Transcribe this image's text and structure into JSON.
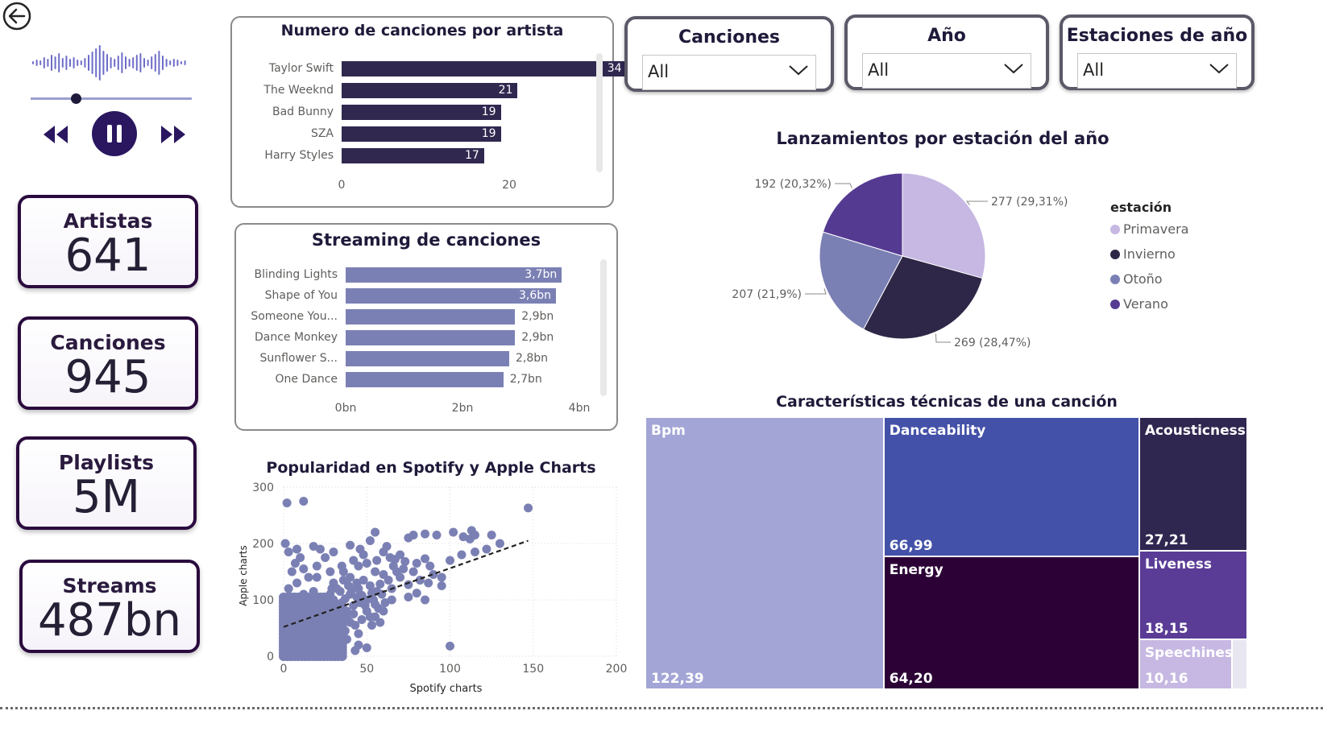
{
  "nav": {
    "back_icon": "back-arrow-icon"
  },
  "player": {
    "progress": 0.28,
    "colors": {
      "wave": "#6c6cc8",
      "button": "#2a1760"
    }
  },
  "kpis": [
    {
      "label": "Artistas",
      "value": "641"
    },
    {
      "label": "Canciones",
      "value": "945"
    },
    {
      "label": "Playlists",
      "value": "5M"
    },
    {
      "label": "Streams",
      "value": "487bn"
    }
  ],
  "slicers": [
    {
      "title": "Canciones",
      "value": "All"
    },
    {
      "title": "Año",
      "value": "All"
    },
    {
      "title": "Estaciones de año",
      "value": "All"
    }
  ],
  "chart_data": [
    {
      "id": "artists",
      "type": "bar",
      "title": "Numero de canciones por artista",
      "categories": [
        "Taylor Swift",
        "The Weeknd",
        "Bad Bunny",
        "SZA",
        "Harry Styles"
      ],
      "values": [
        34,
        21,
        19,
        19,
        17
      ],
      "labels": [
        "34",
        "21",
        "19",
        "19",
        "17"
      ],
      "xticks": [
        "0",
        "20"
      ],
      "xlim": [
        0,
        40
      ],
      "color": "#312850"
    },
    {
      "id": "streams",
      "type": "bar",
      "title": "Streaming de canciones",
      "categories": [
        "Blinding Lights",
        "Shape of You",
        "Someone You...",
        "Dance Monkey",
        "Sunflower S...",
        "One Dance"
      ],
      "values": [
        3.7,
        3.6,
        2.9,
        2.9,
        2.8,
        2.7
      ],
      "labels": [
        "3,7bn",
        "3,6bn",
        "2,9bn",
        "2,9bn",
        "2,8bn",
        "2,7bn"
      ],
      "xticks": [
        "0bn",
        "2bn",
        "4bn"
      ],
      "xlim": [
        0,
        4
      ],
      "color": "#7b80b4"
    },
    {
      "id": "scatter",
      "type": "scatter",
      "title": "Popularidad en Spotify y Apple Charts",
      "xlabel": "Spotify charts",
      "ylabel": "Apple charts",
      "xticks": [
        "0",
        "50",
        "100",
        "150",
        "200"
      ],
      "yticks": [
        "0",
        "100",
        "200",
        "300"
      ],
      "xlim": [
        0,
        200
      ],
      "ylim": [
        0,
        300
      ],
      "trend": [
        [
          0,
          52
        ],
        [
          147,
          205
        ]
      ],
      "color": "#7b80b4",
      "points": [
        [
          2,
          272
        ],
        [
          12,
          275
        ],
        [
          147,
          263
        ],
        [
          55,
          220
        ],
        [
          75,
          210
        ],
        [
          78,
          215
        ],
        [
          85,
          217
        ],
        [
          92,
          215
        ],
        [
          102,
          220
        ],
        [
          108,
          212
        ],
        [
          113,
          223
        ],
        [
          115,
          215
        ],
        [
          112,
          208
        ],
        [
          125,
          215
        ],
        [
          130,
          200
        ],
        [
          115,
          185
        ],
        [
          122,
          190
        ],
        [
          107,
          180
        ],
        [
          100,
          170
        ],
        [
          85,
          173
        ],
        [
          80,
          165
        ],
        [
          73,
          168
        ],
        [
          67,
          172
        ],
        [
          60,
          185
        ],
        [
          52,
          205
        ],
        [
          40,
          197
        ],
        [
          48,
          180
        ],
        [
          45,
          160
        ],
        [
          60,
          145
        ],
        [
          68,
          150
        ],
        [
          70,
          140
        ],
        [
          75,
          127
        ],
        [
          80,
          112
        ],
        [
          85,
          100
        ],
        [
          65,
          100
        ],
        [
          55,
          92
        ],
        [
          50,
          80
        ],
        [
          53,
          55
        ],
        [
          58,
          60
        ],
        [
          45,
          40
        ],
        [
          38,
          30
        ],
        [
          45,
          20
        ],
        [
          50,
          15
        ],
        [
          100,
          18
        ],
        [
          43,
          10
        ],
        [
          55,
          70
        ],
        [
          60,
          80
        ],
        [
          65,
          120
        ],
        [
          95,
          125
        ],
        [
          87,
          130
        ],
        [
          75,
          105
        ],
        [
          36,
          150
        ],
        [
          30,
          130
        ],
        [
          25,
          175
        ],
        [
          20,
          160
        ],
        [
          18,
          195
        ],
        [
          30,
          185
        ],
        [
          22,
          190
        ],
        [
          8,
          190
        ],
        [
          10,
          175
        ],
        [
          15,
          140
        ],
        [
          5,
          150
        ],
        [
          3,
          120
        ],
        [
          8,
          130
        ],
        [
          12,
          110
        ],
        [
          18,
          115
        ],
        [
          25,
          105
        ],
        [
          30,
          100
        ],
        [
          35,
          95
        ],
        [
          40,
          110
        ],
        [
          45,
          120
        ],
        [
          42,
          90
        ],
        [
          38,
          80
        ],
        [
          33,
          70
        ],
        [
          28,
          60
        ],
        [
          22,
          50
        ],
        [
          15,
          45
        ],
        [
          10,
          35
        ],
        [
          5,
          20
        ],
        [
          2,
          10
        ],
        [
          8,
          5
        ],
        [
          12,
          15
        ],
        [
          18,
          25
        ],
        [
          25,
          30
        ],
        [
          30,
          40
        ],
        [
          35,
          50
        ],
        [
          40,
          60
        ],
        [
          20,
          75
        ],
        [
          15,
          85
        ],
        [
          10,
          95
        ],
        [
          5,
          105
        ],
        [
          2,
          80
        ],
        [
          3,
          60
        ],
        [
          1,
          40
        ],
        [
          6,
          70
        ],
        [
          14,
          65
        ],
        [
          24,
          85
        ],
        [
          28,
          110
        ],
        [
          32,
          120
        ],
        [
          36,
          135
        ],
        [
          40,
          140
        ],
        [
          44,
          130
        ],
        [
          48,
          135
        ],
        [
          52,
          125
        ],
        [
          56,
          115
        ],
        [
          50,
          100
        ],
        [
          46,
          95
        ],
        [
          42,
          75
        ],
        [
          38,
          68
        ],
        [
          34,
          58
        ],
        [
          30,
          50
        ],
        [
          26,
          45
        ],
        [
          22,
          40
        ],
        [
          18,
          35
        ],
        [
          14,
          28
        ],
        [
          10,
          22
        ],
        [
          6,
          15
        ],
        [
          4,
          8
        ],
        [
          9,
          28
        ],
        [
          16,
          52
        ],
        [
          21,
          62
        ],
        [
          27,
          78
        ],
        [
          31,
          88
        ],
        [
          37,
          102
        ],
        [
          41,
          118
        ],
        [
          47,
          108
        ],
        [
          53,
          112
        ],
        [
          58,
          128
        ],
        [
          63,
          135
        ],
        [
          66,
          160
        ],
        [
          72,
          155
        ],
        [
          55,
          150
        ],
        [
          50,
          165
        ],
        [
          35,
          160
        ],
        [
          28,
          150
        ],
        [
          20,
          140
        ],
        [
          12,
          155
        ],
        [
          7,
          165
        ],
        [
          3,
          185
        ],
        [
          1,
          200
        ],
        [
          4,
          95
        ],
        [
          7,
          45
        ],
        [
          11,
          55
        ],
        [
          17,
          70
        ],
        [
          23,
          95
        ],
        [
          29,
          120
        ],
        [
          34,
          115
        ],
        [
          39,
          125
        ],
        [
          44,
          105
        ],
        [
          49,
          90
        ],
        [
          54,
          100
        ],
        [
          59,
          110
        ],
        [
          61,
          95
        ],
        [
          57,
          85
        ],
        [
          52,
          70
        ],
        [
          47,
          65
        ],
        [
          43,
          55
        ],
        [
          37,
          45
        ],
        [
          32,
          35
        ],
        [
          27,
          25
        ],
        [
          23,
          18
        ],
        [
          19,
          12
        ],
        [
          15,
          8
        ],
        [
          11,
          4
        ],
        [
          7,
          2
        ],
        [
          3,
          3
        ],
        [
          90,
          145
        ],
        [
          95,
          140
        ],
        [
          82,
          135
        ],
        [
          78,
          150
        ],
        [
          88,
          160
        ],
        [
          70,
          180
        ],
        [
          62,
          195
        ],
        [
          64,
          175
        ],
        [
          56,
          170
        ],
        [
          46,
          190
        ],
        [
          42,
          170
        ]
      ]
    },
    {
      "id": "seasons",
      "type": "pie",
      "title": "Lanzamientos por estación del año",
      "legend_title": "estación",
      "legend_position": "right",
      "slices": [
        {
          "name": "Primavera",
          "value": 277,
          "label": "277 (29,31%)",
          "color": "#c6b8e2"
        },
        {
          "name": "Invierno",
          "value": 269,
          "label": "269 (28,47%)",
          "color": "#2f2747"
        },
        {
          "name": "Otoño",
          "value": 207,
          "label": "207 (21,9%)",
          "color": "#7b80b4"
        },
        {
          "name": "Verano",
          "value": 192,
          "label": "192 (20,32%)",
          "color": "#553a92"
        }
      ]
    },
    {
      "id": "features",
      "type": "treemap",
      "title": "Características técnicas de una canción",
      "items": [
        {
          "name": "Bpm",
          "value": 122.39,
          "label": "122,39",
          "color": "#a2a5d5"
        },
        {
          "name": "Danceability",
          "value": 66.99,
          "label": "66,99",
          "color": "#4451a8"
        },
        {
          "name": "Energy",
          "value": 64.2,
          "label": "64,20",
          "color": "#2c0236"
        },
        {
          "name": "Acousticness",
          "value": 27.21,
          "label": "27,21",
          "color": "#302750"
        },
        {
          "name": "Liveness",
          "value": 18.15,
          "label": "18,15",
          "color": "#5a3c96"
        },
        {
          "name": "Speechiness",
          "value": 10.16,
          "label": "10,16",
          "color": "#c6b8e2"
        }
      ]
    }
  ]
}
